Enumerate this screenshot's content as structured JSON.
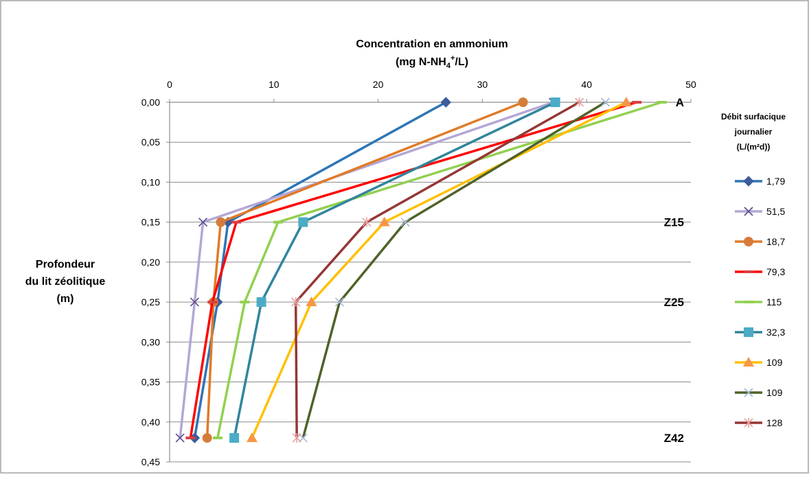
{
  "chart_data": {
    "type": "line",
    "title_line1": "Concentration en ammonium",
    "title_line2_prefix": "(mg N-NH",
    "title_line2_sub": "4",
    "title_line2_sup": "+",
    "title_line2_suffix": "/L)",
    "ylabel_lines": [
      "Profondeur",
      "du lit zéolitique",
      "(m)"
    ],
    "xlim": [
      0,
      50
    ],
    "ylim": [
      0,
      0.45
    ],
    "x_ticks": [
      "0",
      "10",
      "20",
      "30",
      "40",
      "50"
    ],
    "y_ticks": [
      "0,00",
      "0,05",
      "0,10",
      "0,15",
      "0,20",
      "0,25",
      "0,30",
      "0,35",
      "0,40",
      "0,45"
    ],
    "grid": "horizontal",
    "x_axis_position": "top",
    "y_axis_inverted": true,
    "legend_title": [
      "Débit surfacique",
      "journalier",
      "(L/(m²d))"
    ],
    "legend_position": "right",
    "zone_labels": [
      {
        "text": "A",
        "depth": 0.0
      },
      {
        "text": "Z15",
        "depth": 0.15
      },
      {
        "text": "Z25",
        "depth": 0.25
      },
      {
        "text": "Z42",
        "depth": 0.42
      }
    ],
    "depths": [
      0.0,
      0.15,
      0.25,
      0.42
    ],
    "series": [
      {
        "name": "1,79",
        "color": "#2e75b6",
        "marker": "diamond",
        "markerColor": "#3c5c9c",
        "values": [
          26.5,
          5.6,
          4.6,
          2.4
        ]
      },
      {
        "name": "51,5",
        "color": "#b4a7d6",
        "marker": "x",
        "markerColor": "#5b4a8a",
        "values": [
          36.8,
          3.2,
          2.4,
          1.0
        ]
      },
      {
        "name": "18,7",
        "color": "#e07b27",
        "marker": "circle",
        "markerColor": "#d67c3a",
        "values": [
          33.9,
          4.9,
          4.2,
          3.6
        ]
      },
      {
        "name": "79,3",
        "color": "#ff0000",
        "marker": "dash",
        "markerColor": "#d94040",
        "values": [
          44.8,
          6.4,
          4.1,
          2.0
        ]
      },
      {
        "name": "115",
        "color": "#92d050",
        "marker": "dash",
        "markerColor": "#92d050",
        "values": [
          47.2,
          10.4,
          7.2,
          4.6
        ]
      },
      {
        "name": "32,3",
        "color": "#31859c",
        "marker": "square",
        "markerColor": "#4bacc6",
        "values": [
          37.0,
          12.8,
          8.8,
          6.2
        ]
      },
      {
        "name": "109",
        "color": "#ffc000",
        "marker": "triangle",
        "markerColor": "#f79646",
        "values": [
          43.8,
          20.6,
          13.6,
          7.9
        ]
      },
      {
        "name": "109",
        "color": "#4f6228",
        "marker": "x",
        "markerColor": "#a5b8d8",
        "values": [
          41.8,
          22.6,
          16.3,
          12.8
        ]
      },
      {
        "name": "128",
        "color": "#953735",
        "marker": "star",
        "markerColor": "#e8a0a0",
        "values": [
          39.3,
          18.9,
          12.1,
          12.2
        ]
      }
    ]
  }
}
